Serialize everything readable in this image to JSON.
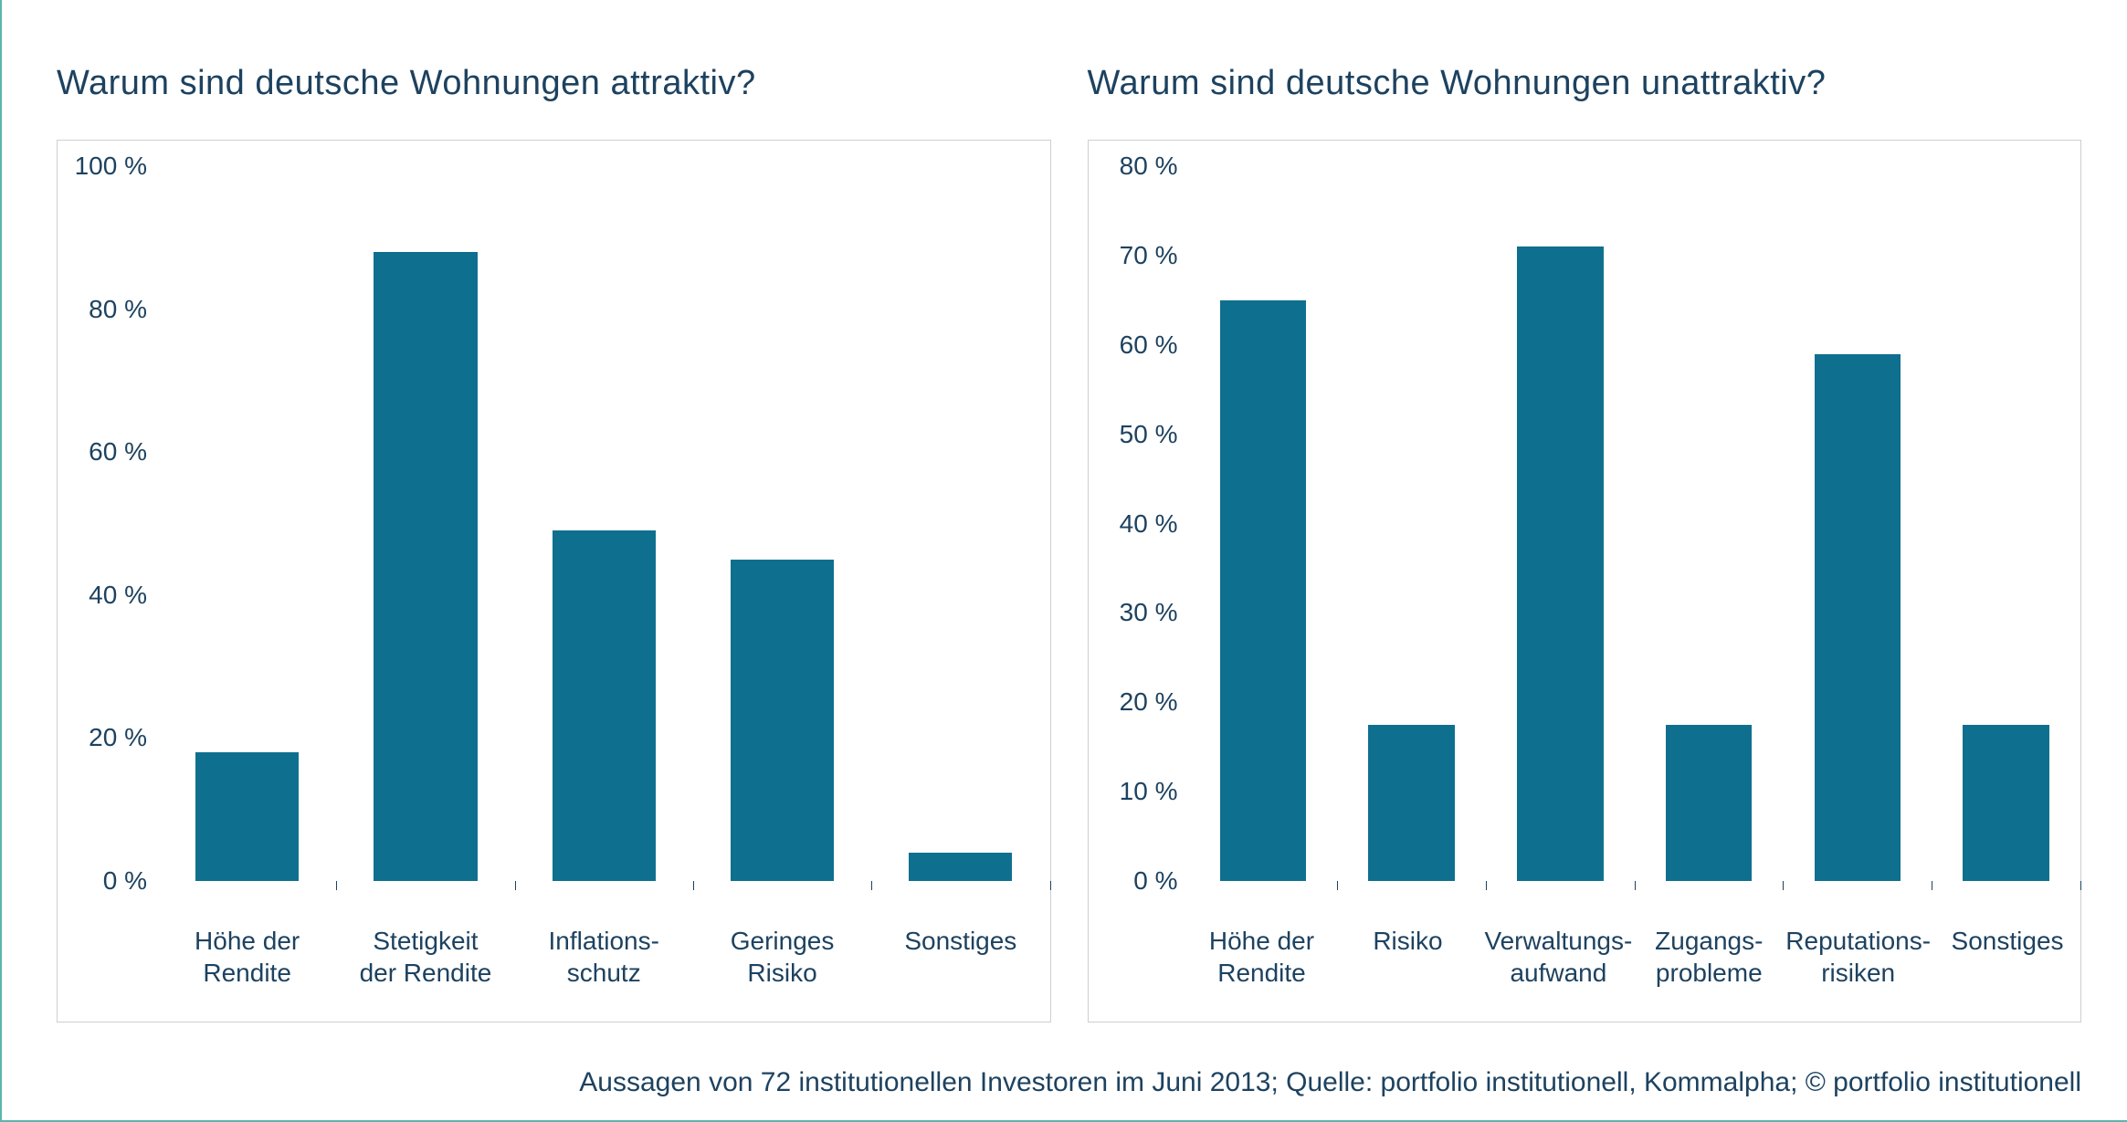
{
  "frame": {
    "border_color": "#5ab5b0",
    "background_color": "#ffffff"
  },
  "typography": {
    "title_fontsize": 38,
    "label_fontsize": 28,
    "footer_fontsize": 30,
    "text_color": "#1d4260",
    "font_weight": 300
  },
  "charts": [
    {
      "title": "Warum sind deutsche Wohnungen attraktiv?",
      "type": "bar",
      "ylim": [
        0,
        100
      ],
      "ytick_step": 20,
      "ytick_suffix": " %",
      "bar_color": "#0f6f8f",
      "bar_width_ratio": 0.58,
      "box_border_color": "#cfcfcf",
      "categories": [
        "Höhe der\nRendite",
        "Stetigkeit\nder Rendite",
        "Inflations-\nschutz",
        "Geringes\nRisiko",
        "Sonstiges"
      ],
      "values": [
        18,
        88,
        49,
        45,
        4
      ]
    },
    {
      "title": "Warum sind deutsche Wohnungen unattraktiv?",
      "type": "bar",
      "ylim": [
        0,
        80
      ],
      "ytick_step": 10,
      "ytick_suffix": " %",
      "bar_color": "#0f6f8f",
      "bar_width_ratio": 0.58,
      "box_border_color": "#cfcfcf",
      "categories": [
        "Höhe der\nRendite",
        "Risiko",
        "Verwaltungs-\naufwand",
        "Zugangs-\nprobleme",
        "Reputations-\nrisiken",
        "Sonstiges"
      ],
      "values": [
        65,
        17.5,
        71,
        17.5,
        59,
        17.5
      ]
    }
  ],
  "footer": "Aussagen von 72 institutionellen Investoren im Juni 2013; Quelle: portfolio institutionell, Kommalpha; © portfolio institutionell"
}
